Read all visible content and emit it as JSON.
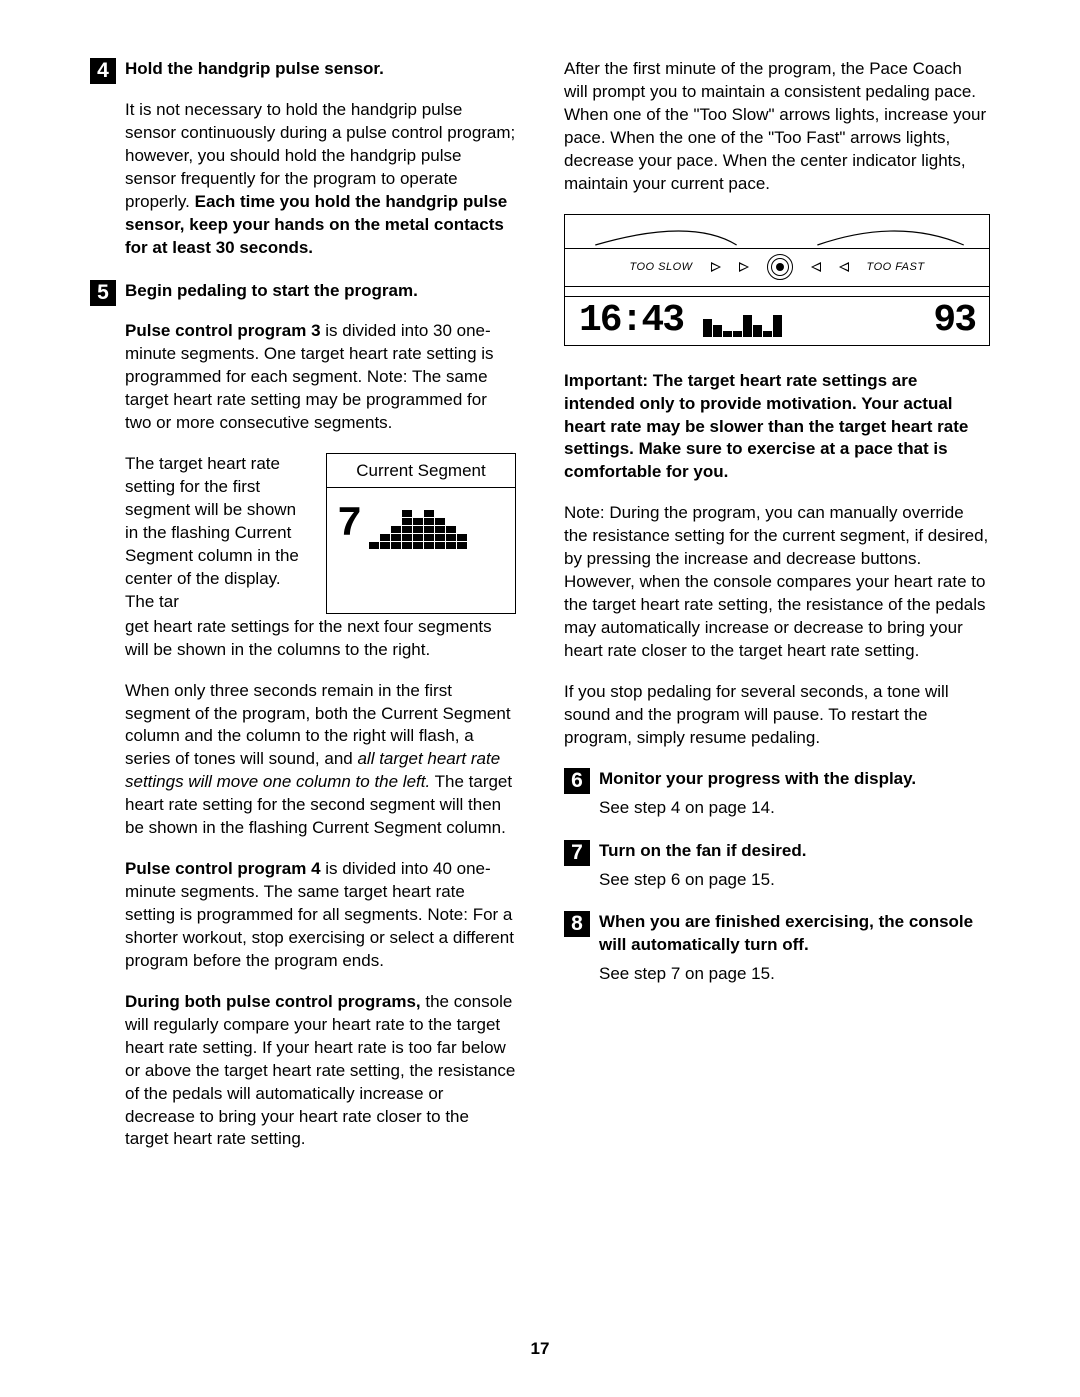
{
  "page_number": "17",
  "left": {
    "step4": {
      "num": "4",
      "title": "Hold the handgrip pulse sensor.",
      "p1a": "It is not necessary to hold the handgrip pulse sensor continuously during a pulse control program; however, you should hold the handgrip pulse sensor frequently for the program to operate properly. ",
      "p1b": "Each time you hold the handgrip pulse sensor, keep your hands on the metal contacts for at least 30 seconds."
    },
    "step5": {
      "num": "5",
      "title": "Begin pedaling to start the program.",
      "p1a": "Pulse control program 3",
      "p1b": " is divided into 30 one-minute segments. One target heart rate setting is programmed for each segment. Note: The same target heart rate setting may be programmed for two or more consecutive segments.",
      "seg_title": "Current Segment",
      "seg_seven": "7",
      "seg_left_text": "The target heart rate setting for the first segment will be shown in the flashing Current Segment column in the center of the display. The tar",
      "seg_after": "get heart rate settings for the next four segments will be shown in the columns to the right.",
      "p3a": "When only three seconds remain in the first segment of the program, both the Current Segment column and the column to the right will flash, a series of tones will sound, and ",
      "p3b": "all target heart rate settings will move one column to the left.",
      "p3c": " The target heart rate setting for the second segment will then be shown in the flashing Current Segment column.",
      "p4a": "Pulse control program 4",
      "p4b": " is divided into 40 one-minute segments. The same target heart rate setting is programmed for all segments. Note: For a shorter workout, stop exercising or select a different program before the program ends.",
      "p5a": "During both pulse control programs,",
      "p5b": " the console will regularly compare your heart rate to the target heart rate setting. If your heart rate is too far below or above the target heart rate setting, the resistance of the pedals will automatically increase or decrease to bring your heart rate closer to the target heart rate setting."
    },
    "seg_chart": {
      "columns": [
        1,
        2,
        3,
        5,
        4,
        5,
        4,
        3,
        2
      ]
    }
  },
  "right": {
    "intro": "After the first minute of the program, the Pace Coach will prompt you to maintain a consistent pedaling pace. When one of the \"Too Slow\" arrows lights, increase your pace. When the one of the \"Too Fast\" arrows lights, decrease your pace. When the center indicator lights, maintain your current pace.",
    "pace": {
      "too_slow": "TOO SLOW",
      "too_fast": "TOO FAST",
      "time": "16:43",
      "num": "93",
      "bars": [
        18,
        12,
        6,
        6,
        22,
        12,
        6,
        22
      ]
    },
    "important": "Important: The target heart rate settings are intended only to provide motivation. Your actual heart rate may be slower than the target heart rate settings. Make sure to exercise at a pace that is comfortable for you.",
    "note": "Note: During the program, you can manually override the resistance setting for the current segment, if desired, by pressing the increase and decrease buttons. However, when the console compares your heart rate to the target heart rate setting, the resistance of the pedals may automatically increase or decrease to bring your heart rate closer to the target heart rate setting.",
    "pause": "If you stop pedaling for several seconds, a tone will sound and the program will pause. To restart the program, simply resume pedaling.",
    "step6": {
      "num": "6",
      "title": "Monitor your progress with the display.",
      "body": "See step 4 on page 14."
    },
    "step7": {
      "num": "7",
      "title": "Turn on the fan if desired.",
      "body": "See step 6 on page 15."
    },
    "step8": {
      "num": "8",
      "title": "When you are finished exercising, the console will automatically turn off.",
      "body": "See step 7 on page 15."
    }
  }
}
